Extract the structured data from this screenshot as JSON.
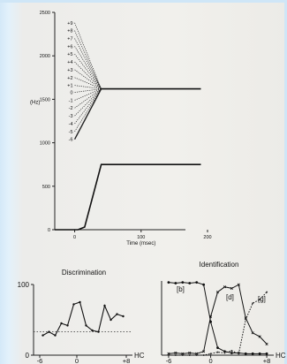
{
  "chart_data": [
    {
      "type": "line",
      "ylabel": "(Hz)",
      "xlabel": "Time (msec)",
      "x_ticks": [
        0,
        100,
        200
      ],
      "y_ticks": [
        0,
        500,
        1000,
        1500,
        2000,
        2500
      ],
      "xlim": [
        -30,
        200
      ],
      "ylim": [
        0,
        2500
      ],
      "grid": false,
      "f2_labels": [
        "+9",
        "+8",
        "+7",
        "+6",
        "+5",
        "+4",
        "+3",
        "+2",
        "+1",
        "0",
        "-1",
        "-2",
        "-3",
        "-4",
        "-5",
        "-6"
      ],
      "f2_onsets": [
        2380,
        2290,
        2200,
        2110,
        2020,
        1930,
        1840,
        1750,
        1660,
        1580,
        1490,
        1400,
        1310,
        1220,
        1130,
        1040
      ],
      "f2_transition_end_ms": 40,
      "f2_steady_hz": 1620,
      "f2_end_ms": 190,
      "f1": {
        "x": [
          -30,
          5,
          15,
          40,
          190
        ],
        "y": [
          0,
          0,
          30,
          750,
          750
        ]
      }
    },
    {
      "type": "line",
      "title": "Discrimination",
      "xlabel": "HC",
      "x_ticks": [
        "-6",
        "0",
        "+8"
      ],
      "y_ticks": [
        "100",
        "0"
      ],
      "ylim": [
        0,
        100
      ],
      "xlim": [
        -7,
        9
      ],
      "series": [
        {
          "x": [
            -5.5,
            -4.5,
            -3.5,
            -2.5,
            -1.5,
            -0.5,
            0.5,
            1.5,
            2.5,
            3.5,
            4.5,
            5.5,
            6.5,
            7.5
          ],
          "y": [
            28,
            33,
            28,
            45,
            42,
            72,
            75,
            42,
            35,
            33,
            70,
            50,
            58,
            55
          ]
        }
      ],
      "baseline": 33
    },
    {
      "type": "line",
      "title": "Identification",
      "xlabel": "HC",
      "x_ticks": [
        "-6",
        "0",
        "+8"
      ],
      "xlim": [
        -7,
        9
      ],
      "ylim": [
        0,
        100
      ],
      "annotations": [
        "[b]",
        "[d]",
        "[g]"
      ],
      "series": [
        {
          "name": "[b]",
          "x": [
            -6,
            -5,
            -4,
            -3,
            -2,
            -1,
            0,
            1,
            2,
            3,
            4,
            5,
            6,
            7,
            8
          ],
          "y": [
            98,
            97,
            98,
            97,
            98,
            95,
            45,
            10,
            5,
            3,
            3,
            2,
            2,
            2,
            2
          ]
        },
        {
          "name": "[d]",
          "x": [
            -6,
            -5,
            -4,
            -3,
            -2,
            -1,
            0,
            1,
            2,
            3,
            4,
            5,
            6,
            7,
            8
          ],
          "y": [
            2,
            3,
            2,
            3,
            2,
            5,
            52,
            85,
            92,
            90,
            95,
            50,
            30,
            25,
            15
          ]
        },
        {
          "name": "[g]",
          "x": [
            -6,
            -5,
            -4,
            -3,
            -2,
            -1,
            0,
            1,
            2,
            3,
            4,
            5,
            6,
            7,
            8
          ],
          "y": [
            0,
            0,
            0,
            0,
            0,
            0,
            2,
            4,
            3,
            6,
            2,
            48,
            70,
            75,
            85
          ]
        }
      ]
    }
  ]
}
